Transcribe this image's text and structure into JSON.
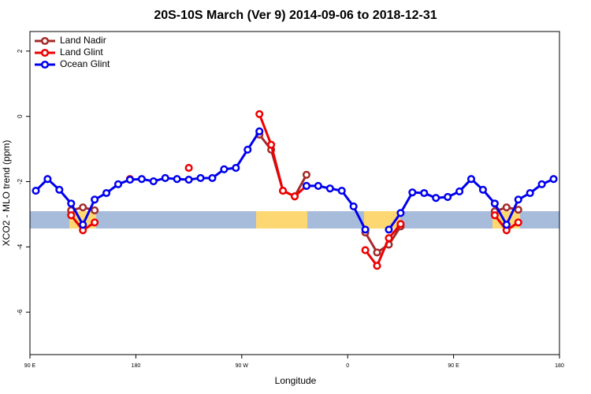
{
  "chart_data": {
    "type": "line",
    "title": "20S-10S March (Ver 9)   2014-09-06 to 2018-12-31",
    "x_label": "Longitude",
    "y_label": "XCO2 - MLO trend (ppm)",
    "xlim": [
      90,
      540
    ],
    "xticks": [
      {
        "value": 90,
        "label": "90 E"
      },
      {
        "value": 180,
        "label": "180"
      },
      {
        "value": 270,
        "label": "90 W"
      },
      {
        "value": 360,
        "label": "0"
      },
      {
        "value": 450,
        "label": "90 E"
      },
      {
        "value": 540,
        "label": "180"
      }
    ],
    "ylim": [
      -7.3,
      2.6
    ],
    "yticks": [
      -6,
      -4,
      -2,
      0,
      2
    ],
    "legend": "top-left",
    "x": [
      95,
      105,
      115,
      125,
      135,
      145,
      155,
      165,
      175,
      185,
      195,
      205,
      215,
      225,
      235,
      245,
      255,
      265,
      275,
      285,
      295,
      305,
      315,
      325,
      335,
      345,
      355,
      365,
      375,
      385,
      395,
      405,
      415,
      425,
      435,
      445,
      455,
      465,
      475,
      485,
      495,
      505,
      515,
      525,
      535
    ],
    "series": [
      {
        "name": "Land Nadir",
        "color": "#a52a2a",
        "values": [
          null,
          null,
          null,
          -2.88,
          -2.79,
          -2.88,
          null,
          null,
          null,
          null,
          null,
          null,
          null,
          null,
          null,
          null,
          null,
          null,
          null,
          -0.56,
          -1.02,
          -2.28,
          -2.45,
          -1.79,
          null,
          null,
          null,
          null,
          -3.56,
          -4.17,
          -3.93,
          -3.37,
          null,
          null,
          null,
          null,
          null,
          null,
          null,
          -2.91,
          -2.79,
          -2.86,
          null,
          null,
          null
        ]
      },
      {
        "name": "Land Glint",
        "color": "#ee0000",
        "values": [
          null,
          null,
          null,
          -3.03,
          -3.49,
          -3.25,
          null,
          null,
          -1.92,
          null,
          null,
          null,
          null,
          -1.58,
          null,
          null,
          null,
          null,
          null,
          0.07,
          -0.87,
          -2.28,
          -2.45,
          -2.13,
          null,
          null,
          null,
          null,
          -4.1,
          -4.58,
          -3.73,
          -3.3,
          null,
          null,
          null,
          null,
          null,
          null,
          null,
          -3.03,
          -3.49,
          -3.25,
          null,
          null,
          null
        ]
      },
      {
        "name": "Ocean Glint",
        "color": "#0000ee",
        "values": [
          -2.28,
          -1.92,
          -2.25,
          -2.67,
          -3.32,
          -2.55,
          -2.35,
          -2.08,
          -1.94,
          -1.92,
          -1.99,
          -1.89,
          -1.92,
          -1.94,
          -1.89,
          -1.89,
          -1.62,
          -1.58,
          -1.02,
          -0.46,
          null,
          null,
          null,
          -2.13,
          -2.13,
          -2.21,
          -2.28,
          -2.76,
          -3.47,
          null,
          -3.47,
          -2.96,
          -2.33,
          -2.35,
          -2.5,
          -2.47,
          -2.3,
          -1.92,
          -2.25,
          -2.67,
          -3.32,
          -2.55,
          -2.35,
          -2.08,
          -1.92
        ]
      }
    ]
  }
}
